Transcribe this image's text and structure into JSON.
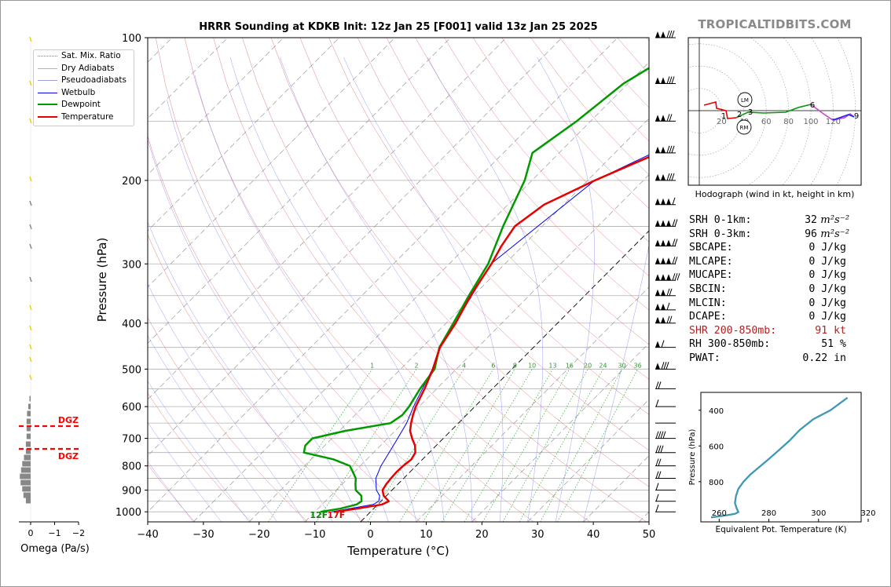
{
  "title": "HRRR Sounding at KDKB Init: 12z Jan 25 [F001] valid 13z Jan 25 2025",
  "brand": "TROPICALTIDBITS.COM",
  "colors": {
    "temperature": "#e60000",
    "dewpoint": "#009900",
    "wetbulb": "#0000ee",
    "dry_adiabats": "#e06060",
    "pseudoadiabats": "#8080ff",
    "mixing_ratio": "#33aa33",
    "hodograph": "#e60000",
    "theta_e": "#3d97b5",
    "omega_bars": "#888888",
    "dgz": "#ff0000"
  },
  "chart_data": [
    {
      "type": "line",
      "name": "skew-t",
      "xlabel": "Temperature (°C)",
      "ylabel": "Pressure (hPa)",
      "xlim": [
        -40,
        50
      ],
      "ylim": [
        1050,
        100
      ],
      "y_scale": "log",
      "x_ticks": [
        "−40",
        "−30",
        "−20",
        "−10",
        "0",
        "10",
        "20",
        "30",
        "40",
        "50"
      ],
      "x_tick_values": [
        -40,
        -30,
        -20,
        -10,
        0,
        10,
        20,
        30,
        40,
        50
      ],
      "y_ticks": [
        100,
        200,
        300,
        400,
        500,
        600,
        700,
        800,
        900,
        1000
      ],
      "grid": true,
      "legend_position": "top-left",
      "legend": [
        "Sat. Mix. Ratio",
        "Dry Adiabats",
        "Pseudoadiabats",
        "Wetbulb",
        "Dewpoint",
        "Temperature"
      ],
      "mixing_ratio_labels": [
        "1",
        "2",
        "4",
        "6",
        "8",
        "10",
        "13",
        "16",
        "20",
        "24",
        "30",
        "36"
      ],
      "surface_labels": {
        "dewpoint": "12F",
        "temperature": "17F"
      },
      "series": [
        {
          "name": "Temperature",
          "p": [
            1000,
            985,
            965,
            950,
            925,
            900,
            875,
            850,
            825,
            800,
            775,
            750,
            725,
            700,
            675,
            650,
            625,
            600,
            550,
            500,
            450,
            400,
            350,
            300,
            275,
            250,
            225,
            200,
            175,
            150,
            125,
            100
          ],
          "t": [
            -6.3,
            -3,
            0.8,
            1.4,
            -0.5,
            -1.7,
            -2.1,
            -2.3,
            -2.4,
            -2.3,
            -2,
            -2.5,
            -3.8,
            -5.6,
            -7.3,
            -8.5,
            -9.6,
            -10.6,
            -12.2,
            -14.2,
            -16.8,
            -18.3,
            -20.5,
            -22.4,
            -23.8,
            -24.9,
            -23.5,
            -18.7,
            -12.2,
            -6.7,
            -4.8,
            0.4
          ]
        },
        {
          "name": "Dewpoint",
          "p": [
            1000,
            985,
            965,
            950,
            925,
            900,
            875,
            850,
            825,
            800,
            775,
            750,
            725,
            700,
            675,
            650,
            625,
            600,
            550,
            500,
            450,
            400,
            350,
            300,
            250,
            200,
            175,
            150,
            125,
            100
          ],
          "t": [
            -9,
            -6,
            -3.8,
            -3.5,
            -4.5,
            -6.5,
            -7.6,
            -8.6,
            -10.2,
            -11.9,
            -16,
            -22.5,
            -23.5,
            -23.5,
            -19,
            -12.2,
            -11.5,
            -11.8,
            -13,
            -13.9,
            -16.9,
            -18.7,
            -20.8,
            -23,
            -27,
            -31.3,
            -34.8,
            -32.5,
            -30.8,
            -25.4
          ]
        },
        {
          "name": "Wetbulb",
          "p": [
            1000,
            965,
            950,
            925,
            900,
            850,
            800,
            750,
            700,
            650,
            600,
            500,
            450,
            400,
            300,
            200,
            150,
            125,
            100
          ],
          "t": [
            -7,
            -0.8,
            -0.4,
            -1.2,
            -2.8,
            -5,
            -6.3,
            -7.2,
            -8.2,
            -9.3,
            -11,
            -14.3,
            -16.9,
            -18.4,
            -22.5,
            -18.7,
            -6.7,
            -5,
            -0.1
          ]
        }
      ]
    },
    {
      "type": "line",
      "name": "hodograph",
      "caption": "Hodograph (wind in kt, height in km)",
      "ring_labels": [
        "20",
        "40",
        "60",
        "80",
        "100",
        "120"
      ],
      "height_labels": [
        "1",
        "2",
        "3",
        "6",
        "9"
      ],
      "markers": [
        "LM",
        "RM"
      ]
    },
    {
      "type": "line",
      "name": "theta-e profile",
      "xlabel": "Equivalent Pot. Temperature (K)",
      "ylabel": "Pressure (hPa)",
      "xlim": [
        275,
        322
      ],
      "ylim": [
        1025,
        300
      ],
      "x_ticks": [
        260,
        280,
        300,
        320
      ],
      "y_ticks": [
        400,
        600,
        800
      ],
      "x": [
        278,
        282,
        285,
        286,
        285.5,
        285,
        285.3,
        286,
        287.5,
        289.5,
        292,
        294.5,
        297.5,
        301,
        304,
        308,
        313,
        318
      ],
      "p": [
        1000,
        990,
        980,
        970,
        950,
        920,
        880,
        840,
        800,
        760,
        720,
        680,
        630,
        570,
        510,
        450,
        400,
        330
      ]
    },
    {
      "type": "bar",
      "name": "omega",
      "xlabel": "Omega (Pa/s)",
      "x_ticks": [
        "0",
        "−1",
        "−2"
      ],
      "dgz_labels": [
        "DGZ",
        "DGZ"
      ]
    }
  ],
  "params": [
    {
      "label": "SRH 0-1km:",
      "value": "32",
      "unit": "m²s⁻²",
      "highlight": false
    },
    {
      "label": "SRH 0-3km:",
      "value": "96",
      "unit": "m²s⁻²",
      "highlight": false
    },
    {
      "label": "SBCAPE:",
      "value": "0 J/kg",
      "unit": "",
      "highlight": false
    },
    {
      "label": "MLCAPE:",
      "value": "0 J/kg",
      "unit": "",
      "highlight": false
    },
    {
      "label": "MUCAPE:",
      "value": "0 J/kg",
      "unit": "",
      "highlight": false
    },
    {
      "label": "SBCIN:",
      "value": "0 J/kg",
      "unit": "",
      "highlight": false
    },
    {
      "label": "MLCIN:",
      "value": "0 J/kg",
      "unit": "",
      "highlight": false
    },
    {
      "label": "DCAPE:",
      "value": "0 J/kg",
      "unit": "",
      "highlight": false
    },
    {
      "label": "SHR 200-850mb:",
      "value": "91 kt",
      "unit": "",
      "highlight": true
    },
    {
      "label": "RH 300-850mb:",
      "value": "51 %",
      "unit": "",
      "highlight": false
    },
    {
      "label": "PWAT:",
      "value": "0.22 in",
      "unit": "",
      "highlight": false
    }
  ]
}
